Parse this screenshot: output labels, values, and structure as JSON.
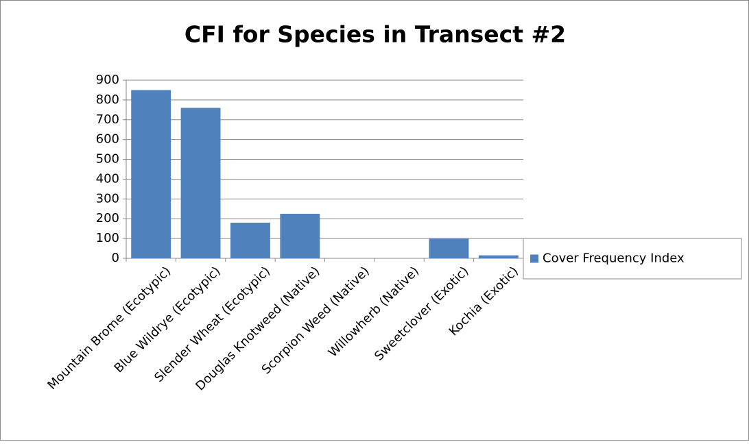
{
  "chart_data": {
    "type": "bar",
    "title": "CFI for Species in Transect #2",
    "categories": [
      "Mountain Brome (Ecotypic)",
      "Blue Wildrye (Ecotypic)",
      "Slender Wheat (Ecotypic)",
      "Douglas Knotweed (Native)",
      "Scorpion Weed (Native)",
      "Willowherb (Native)",
      "Sweetclover (Exotic)",
      "Kochia (Exotic)"
    ],
    "series": [
      {
        "name": "Cover Frequency Index",
        "color": "#4f81bd",
        "values": [
          850,
          760,
          180,
          225,
          0,
          0,
          100,
          15
        ]
      }
    ],
    "ylim": [
      0,
      900
    ],
    "yticks": [
      0,
      100,
      200,
      300,
      400,
      500,
      600,
      700,
      800,
      900
    ],
    "grid": true,
    "legend": "right"
  }
}
